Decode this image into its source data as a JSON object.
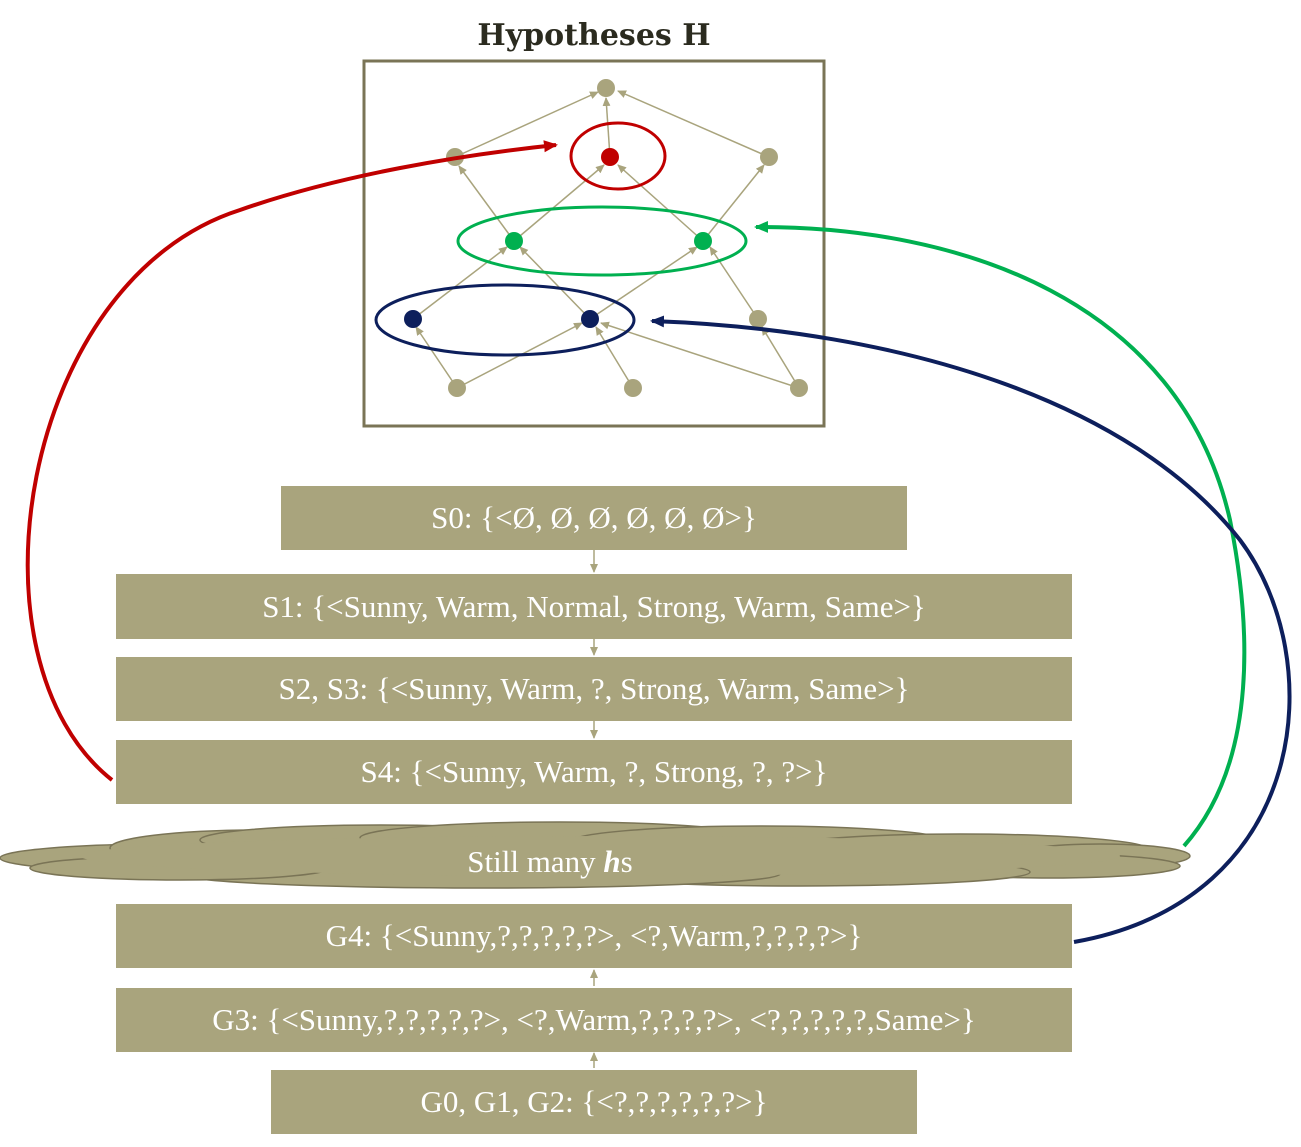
{
  "title": "Hypotheses H",
  "colors": {
    "box_fill": "#a9a47d",
    "node": "#a9a47d",
    "red": "#c00000",
    "green": "#00b050",
    "navy": "#0d1f5c",
    "frame": "#7a7456"
  },
  "rows": [
    {
      "id": "s0",
      "label": "S0: {<Ø, Ø, Ø, Ø, Ø, Ø>}"
    },
    {
      "id": "s1",
      "label": "S1: {<Sunny, Warm, Normal, Strong, Warm, Same>}"
    },
    {
      "id": "s2s3",
      "label": "S2, S3: {<Sunny, Warm, ?, Strong, Warm, Same>}"
    },
    {
      "id": "s4",
      "label": "S4: {<Sunny, Warm, ?, Strong, ?, ?>}"
    },
    {
      "id": "g4",
      "label": "G4: {<Sunny,?,?,?,?,?>, <?,Warm,?,?,?,?>}"
    },
    {
      "id": "g3",
      "label": "G3: {<Sunny,?,?,?,?,?>, <?,Warm,?,?,?,?>, <?,?,?,?,?,Same>}"
    },
    {
      "id": "g0g2",
      "label": "G0, G1, G2: {<?,?,?,?,?,?>}"
    }
  ],
  "cloud": {
    "prefix": "Still many ",
    "emph": "h",
    "suffix": "s"
  }
}
